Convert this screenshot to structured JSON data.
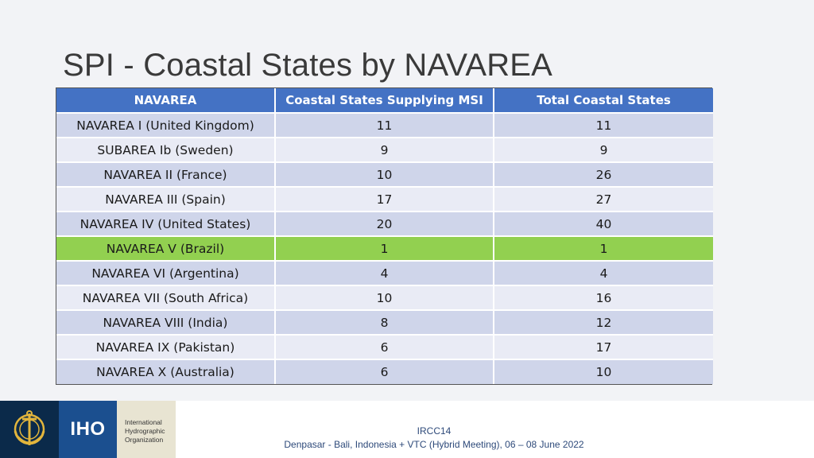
{
  "title": "SPI - Coastal States by NAVAREA",
  "table": {
    "headers": [
      "NAVAREA",
      "Coastal States Supplying MSI",
      "Total Coastal States"
    ],
    "rows": [
      [
        "NAVAREA I (United Kingdom)",
        "11",
        "11"
      ],
      [
        "SUBAREA Ib (Sweden)",
        "9",
        "9"
      ],
      [
        "NAVAREA II (France)",
        "10",
        "26"
      ],
      [
        "NAVAREA III (Spain)",
        "17",
        "27"
      ],
      [
        "NAVAREA IV (United States)",
        "20",
        "40"
      ],
      [
        "NAVAREA V (Brazil)",
        "1",
        "1"
      ],
      [
        "NAVAREA VI (Argentina)",
        "4",
        "4"
      ],
      [
        "NAVAREA VII (South Africa)",
        "10",
        "16"
      ],
      [
        "NAVAREA VIII (India)",
        "8",
        "12"
      ],
      [
        "NAVAREA IX (Pakistan)",
        "6",
        "17"
      ],
      [
        "NAVAREA X (Australia)",
        "6",
        "10"
      ]
    ],
    "highlight_color": "#92d050",
    "header_color": "#4472c4"
  },
  "footer": {
    "logo_abbrev": "IHO",
    "org_lines": [
      "International",
      "Hydrographic",
      "Organization"
    ],
    "event": "IRCC14",
    "venue": "Denpasar - Bali, Indonesia + VTC (Hybrid Meeting), 06 – 08 June 2022"
  }
}
